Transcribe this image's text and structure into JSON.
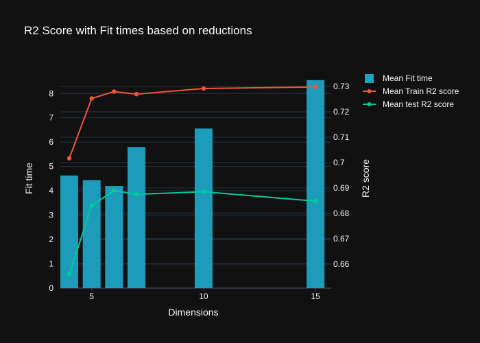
{
  "chart_data": {
    "type": "bar",
    "title": "R2 Score with Fit times based on reductions",
    "xlabel": "Dimensions",
    "ylabel": "Fit time",
    "y2label": "R2 score",
    "x": [
      4,
      5,
      6,
      7,
      10,
      15
    ],
    "xlim": [
      3.6,
      15.7
    ],
    "ylim": [
      0,
      8.6
    ],
    "y2lim": [
      0.6505,
      0.733
    ],
    "x_ticks": [
      5,
      10,
      15
    ],
    "y_ticks": [
      0,
      1,
      2,
      3,
      4,
      5,
      6,
      7,
      8
    ],
    "y2_ticks": [
      0.66,
      0.67,
      0.68,
      0.69,
      0.7,
      0.71,
      0.72,
      0.73
    ],
    "y2_tick_labels": [
      "0.66",
      "0.67",
      "0.68",
      "0.69",
      "0.7",
      "0.71",
      "0.72",
      "0.73"
    ],
    "grid": true,
    "legend_position": "top-right",
    "series": [
      {
        "name": "Mean Fit time",
        "kind": "bar",
        "axis": "y",
        "color": "#1fa3c4",
        "values": [
          4.63,
          4.44,
          4.2,
          5.8,
          6.56,
          8.55
        ]
      },
      {
        "name": "Mean Train R2 score",
        "kind": "line",
        "axis": "y2",
        "color": "#ef553b",
        "values": [
          0.7017,
          0.7253,
          0.728,
          0.727,
          0.7292,
          0.7298
        ]
      },
      {
        "name": "Mean test R2 score",
        "kind": "line",
        "axis": "y2",
        "color": "#00cc96",
        "values": [
          0.656,
          0.683,
          0.689,
          0.6875,
          0.6885,
          0.6848
        ]
      }
    ]
  }
}
